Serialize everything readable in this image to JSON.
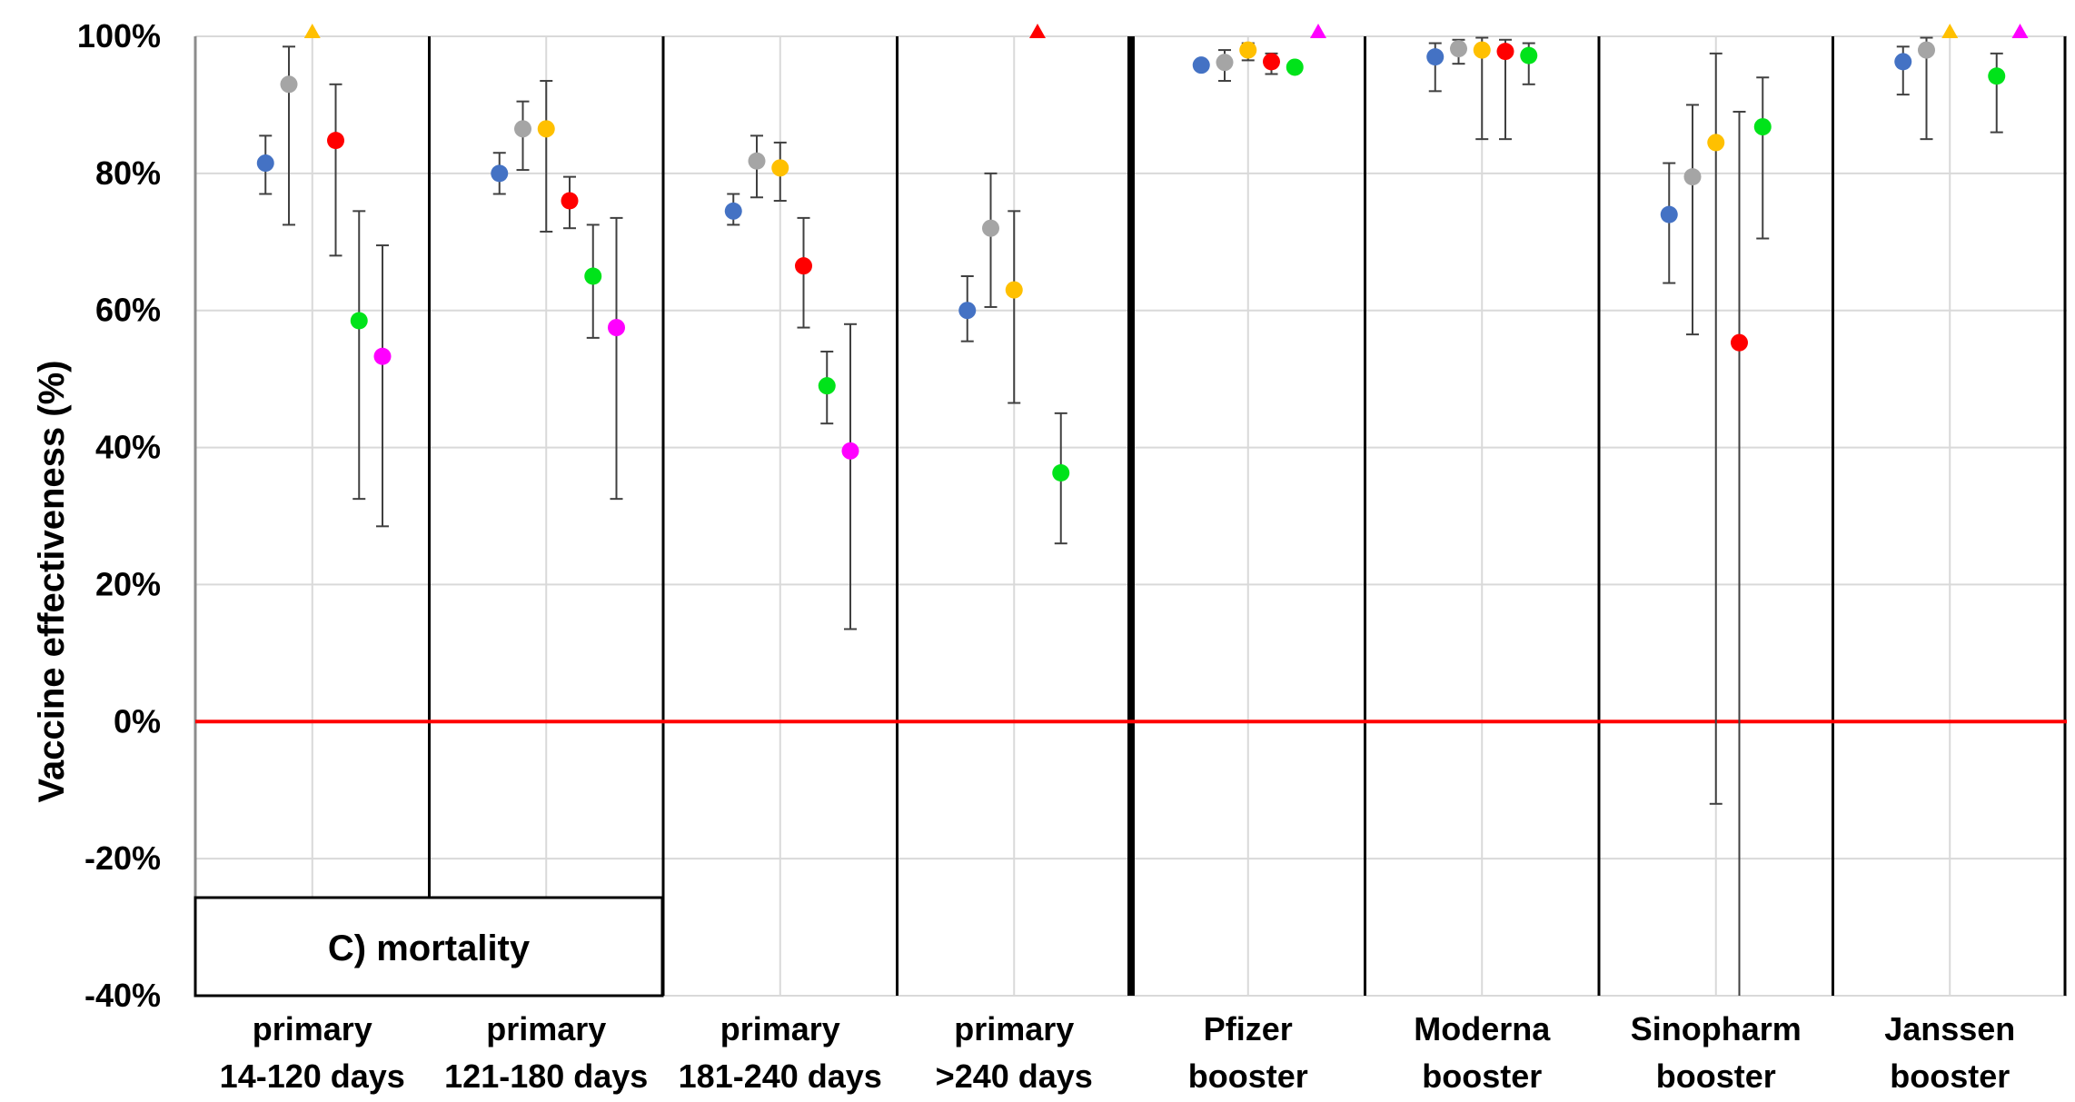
{
  "chart_data": {
    "type": "scatter",
    "panel_label": "C) mortality",
    "ylabel": "Vaccine effectiveness (%)",
    "ylim": [
      -40,
      100
    ],
    "yticks": [
      {
        "value": -40,
        "label": "-40%"
      },
      {
        "value": -20,
        "label": "-20%"
      },
      {
        "value": 0,
        "label": "0%"
      },
      {
        "value": 20,
        "label": "20%"
      },
      {
        "value": 40,
        "label": "40%"
      },
      {
        "value": 60,
        "label": "60%"
      },
      {
        "value": 80,
        "label": "80%"
      },
      {
        "value": 100,
        "label": "100%"
      }
    ],
    "grid": true,
    "reference_line": {
      "value": 0,
      "color": "#ff0000"
    },
    "categories": [
      {
        "line1": "primary",
        "line2": "14-120 days"
      },
      {
        "line1": "primary",
        "line2": "121-180 days"
      },
      {
        "line1": "primary",
        "line2": "181-240 days"
      },
      {
        "line1": "primary",
        "line2": ">240 days"
      },
      {
        "line1": "Pfizer",
        "line2": "booster"
      },
      {
        "line1": "Moderna",
        "line2": "booster"
      },
      {
        "line1": "Sinopharm",
        "line2": "booster"
      },
      {
        "line1": "Janssen",
        "line2": "booster"
      }
    ],
    "series": [
      {
        "color": "#4472c4",
        "values": [
          81.5,
          80,
          74.5,
          60,
          95.8,
          97,
          74,
          96.3
        ],
        "err_low": [
          77,
          77,
          72.5,
          55.5,
          null,
          92,
          64,
          91.5
        ],
        "err_high": [
          85.5,
          83,
          77,
          65,
          null,
          99,
          81.5,
          98.5
        ]
      },
      {
        "color": "#a5a5a5",
        "values": [
          93,
          86.5,
          81.8,
          72,
          96.2,
          98.2,
          79.5,
          98
        ],
        "err_low": [
          72.5,
          80.5,
          76.5,
          60.5,
          93.5,
          96,
          56.5,
          85
        ],
        "err_high": [
          98.5,
          90.5,
          85.5,
          80,
          98,
          99.5,
          90,
          99.8
        ]
      },
      {
        "color": "#ffc000",
        "values": [
          100,
          86.5,
          80.8,
          63,
          98,
          98,
          84.5,
          100
        ],
        "err_low": [
          null,
          71.5,
          76,
          46.5,
          96.5,
          85,
          -12,
          null
        ],
        "err_high": [
          null,
          93.5,
          84.5,
          74.5,
          99,
          99.8,
          97.5,
          null
        ],
        "triangle": [
          true,
          false,
          false,
          false,
          false,
          false,
          false,
          true
        ]
      },
      {
        "color": "#ff0000",
        "values": [
          84.8,
          76,
          66.5,
          100,
          96.3,
          97.8,
          55.3,
          null
        ],
        "err_low": [
          68,
          72,
          57.5,
          null,
          94.5,
          85,
          -40,
          null
        ],
        "err_high": [
          93,
          79.5,
          73.5,
          null,
          97.5,
          99.5,
          89,
          null
        ],
        "triangle": [
          false,
          false,
          false,
          true,
          false,
          false,
          false,
          false
        ]
      },
      {
        "color": "#00e31a",
        "values": [
          58.5,
          65,
          49,
          36.3,
          95.5,
          97.2,
          86.8,
          94.2
        ],
        "err_low": [
          32.5,
          56,
          43.5,
          26,
          null,
          93,
          70.5,
          86
        ],
        "err_high": [
          74.5,
          72.5,
          54,
          45,
          null,
          99,
          94,
          97.5
        ]
      },
      {
        "color": "#ff00ff",
        "values": [
          53.3,
          57.5,
          39.5,
          null,
          100,
          null,
          null,
          100
        ],
        "err_low": [
          28.5,
          32.5,
          13.5,
          null,
          null,
          null,
          null,
          null
        ],
        "err_high": [
          69.5,
          73.5,
          58,
          null,
          null,
          null,
          null,
          null
        ],
        "triangle": [
          false,
          false,
          false,
          false,
          true,
          false,
          false,
          true
        ]
      }
    ]
  }
}
